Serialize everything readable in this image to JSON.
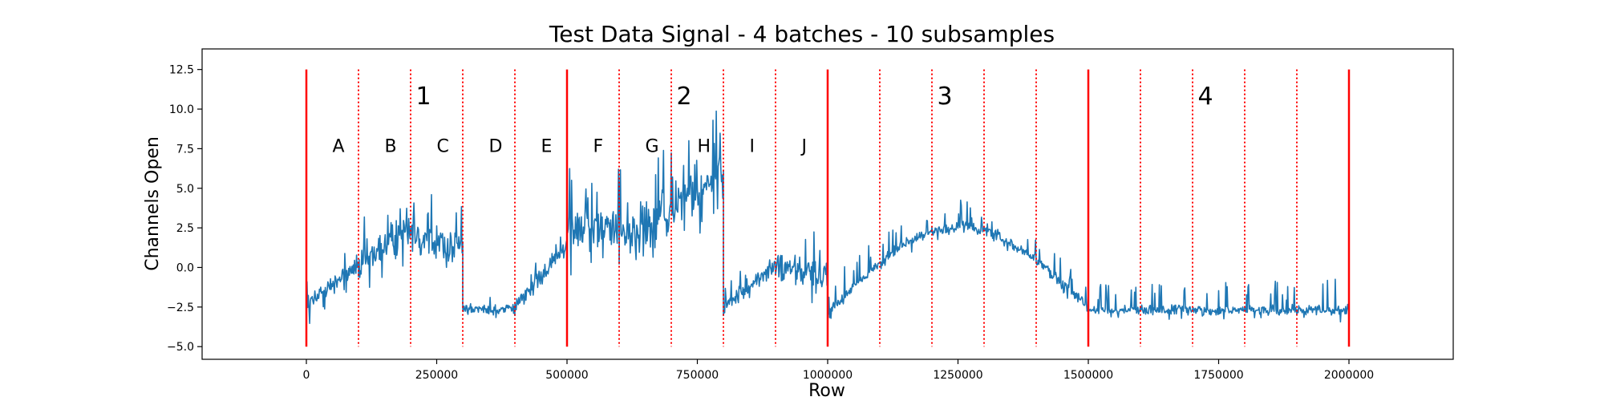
{
  "chart_data": {
    "type": "line",
    "title": "Test Data Signal - 4 batches - 10 subsamples",
    "xlabel": "Row",
    "ylabel": "Channels Open",
    "xlim": [
      -200000,
      2200000
    ],
    "ylim": [
      -5.8,
      13.8
    ],
    "x_ticks": [
      0,
      250000,
      500000,
      750000,
      1000000,
      1250000,
      1500000,
      1750000,
      2000000
    ],
    "x_tick_labels": [
      "0",
      "250000",
      "500000",
      "750000",
      "1000000",
      "1250000",
      "1500000",
      "1750000",
      "2000000"
    ],
    "y_ticks": [
      -5.0,
      -2.5,
      0.0,
      2.5,
      5.0,
      7.5,
      10.0,
      12.5
    ],
    "y_tick_labels": [
      "−5.0",
      "−2.5",
      "0.0",
      "2.5",
      "5.0",
      "7.5",
      "10.0",
      "12.5"
    ],
    "grid": false,
    "line_color": "#1f77b4",
    "boundary_color": "#ff0000",
    "batch_boundaries": [
      0,
      500000,
      1000000,
      1500000,
      2000000
    ],
    "subsample_boundaries": [
      100000,
      200000,
      300000,
      400000,
      600000,
      700000,
      800000,
      900000,
      1100000,
      1200000,
      1300000,
      1400000,
      1600000,
      1700000,
      1800000,
      1900000
    ],
    "boundary_ymin": -5.0,
    "boundary_ymax": 12.5,
    "batch_labels": [
      {
        "text": "1",
        "x": 210000,
        "y": 10.3
      },
      {
        "text": "2",
        "x": 710000,
        "y": 10.3
      },
      {
        "text": "3",
        "x": 1210000,
        "y": 10.3
      },
      {
        "text": "4",
        "x": 1710000,
        "y": 10.3
      }
    ],
    "subsample_labels": [
      {
        "text": "A",
        "x": 50000,
        "y": 7.3
      },
      {
        "text": "B",
        "x": 150000,
        "y": 7.3
      },
      {
        "text": "C",
        "x": 250000,
        "y": 7.3
      },
      {
        "text": "D",
        "x": 350000,
        "y": 7.3
      },
      {
        "text": "E",
        "x": 450000,
        "y": 7.3
      },
      {
        "text": "F",
        "x": 550000,
        "y": 7.3
      },
      {
        "text": "G",
        "x": 650000,
        "y": 7.3
      },
      {
        "text": "H",
        "x": 750000,
        "y": 7.3
      },
      {
        "text": "I",
        "x": 850000,
        "y": 7.3
      },
      {
        "text": "J",
        "x": 950000,
        "y": 7.3
      }
    ],
    "series": [
      {
        "segments": [
          {
            "x0": 0,
            "x1": 100000,
            "base_start": -2.4,
            "base_end": 0.2,
            "shape": "linear",
            "noise": 0.6,
            "spike_up": 1.0
          },
          {
            "x0": 100000,
            "x1": 200000,
            "base_start": 0.0,
            "base_end": 2.7,
            "shape": "linear",
            "noise": 1.0,
            "spike_up": 1.6
          },
          {
            "x0": 200000,
            "x1": 300000,
            "base_start": 2.2,
            "base_end": 1.2,
            "shape": "linear",
            "noise": 1.3,
            "spike_up": 1.8
          },
          {
            "x0": 300000,
            "x1": 400000,
            "base_start": -2.7,
            "base_end": -2.6,
            "shape": "linear",
            "noise": 0.3,
            "spike_up": 0.5
          },
          {
            "x0": 400000,
            "x1": 500000,
            "base_start": -2.5,
            "base_end": 1.3,
            "shape": "linear",
            "noise": 0.6,
            "spike_up": 0.8
          },
          {
            "x0": 500000,
            "x1": 600000,
            "base_start": 2.8,
            "base_end": 2.6,
            "shape": "linear",
            "noise": 1.6,
            "spike_up": 2.5
          },
          {
            "x0": 600000,
            "x1": 700000,
            "base_start": 1.8,
            "base_end": 3.6,
            "shape": "linear",
            "noise": 1.7,
            "spike_up": 2.8
          },
          {
            "x0": 700000,
            "x1": 800000,
            "base_start": 3.8,
            "base_end": 5.6,
            "shape": "linear",
            "noise": 1.8,
            "spike_up": 3.5
          },
          {
            "x0": 800000,
            "x1": 900000,
            "base_start": -2.6,
            "base_end": 0.2,
            "shape": "linear",
            "noise": 0.5,
            "spike_up": 1.0
          },
          {
            "x0": 900000,
            "x1": 1000000,
            "base_start": 0.0,
            "base_end": -0.4,
            "shape": "linear",
            "noise": 1.0,
            "spike_up": 1.3
          },
          {
            "x0": 1000000,
            "x1": 1500000,
            "base_start": -2.9,
            "base_end": -2.6,
            "shape": "sine",
            "amplitude": 5.3,
            "noise": 0.35,
            "spike_up": 1.2
          },
          {
            "x0": 1500000,
            "x1": 2000000,
            "base_start": -2.7,
            "base_end": -2.7,
            "shape": "linear",
            "noise": 0.3,
            "spike_up": 1.4
          }
        ]
      }
    ]
  }
}
